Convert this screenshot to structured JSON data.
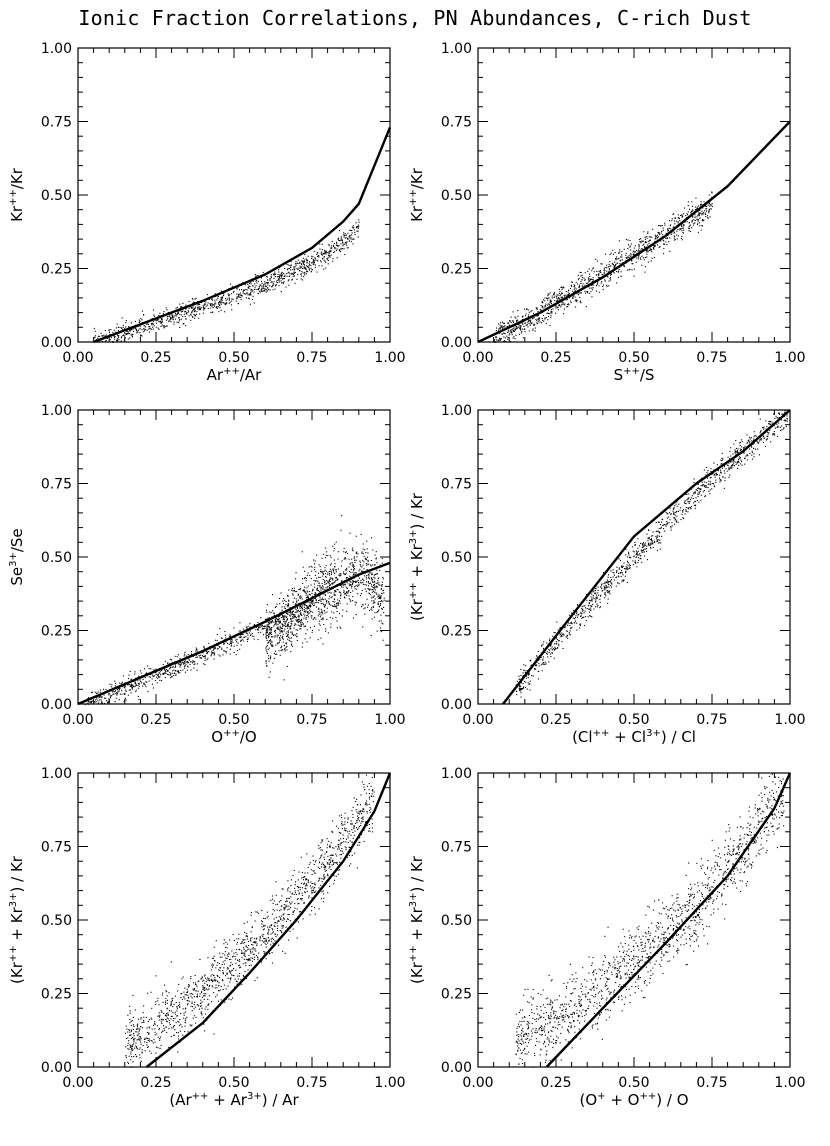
{
  "figure": {
    "title": "Ionic Fraction Correlations, PN Abundances, C-rich Dust"
  },
  "colors": {
    "axis": "#000000",
    "points": "#000000",
    "curve": "#000000",
    "background": "#ffffff"
  },
  "chart_data": [
    {
      "type": "scatter",
      "panel": "top-left",
      "xlabel": {
        "base": "Ar",
        "sup": "++",
        "rest": "/Ar"
      },
      "ylabel": {
        "base": "Kr",
        "sup": "++",
        "rest": "/Kr"
      },
      "xlim": [
        0,
        1
      ],
      "ylim": [
        0,
        1
      ],
      "xticks": [
        "0.00",
        "0.25",
        "0.50",
        "0.75",
        "1.00"
      ],
      "yticks": [
        "0.00",
        "0.25",
        "0.50",
        "0.75",
        "1.00"
      ],
      "fit_curve": {
        "x": [
          0.05,
          0.2,
          0.4,
          0.6,
          0.75,
          0.85,
          0.9,
          1.0
        ],
        "y": [
          0.0,
          0.06,
          0.14,
          0.23,
          0.32,
          0.41,
          0.47,
          0.73
        ]
      },
      "point_clouds": [
        {
          "x_range": [
            0.05,
            0.9
          ],
          "curve": {
            "x": [
              0.05,
              0.2,
              0.4,
              0.6,
              0.75,
              0.85,
              0.9
            ],
            "y": [
              0.0,
              0.05,
              0.12,
              0.2,
              0.27,
              0.34,
              0.4
            ]
          },
          "spread": 0.035,
          "count": 1100
        }
      ]
    },
    {
      "type": "scatter",
      "panel": "top-right",
      "xlabel": {
        "base": "S",
        "sup": "++",
        "rest": "/S"
      },
      "ylabel": {
        "base": "Kr",
        "sup": "++",
        "rest": "/Kr"
      },
      "xlim": [
        0,
        1
      ],
      "ylim": [
        0,
        1
      ],
      "xticks": [
        "0.00",
        "0.25",
        "0.50",
        "0.75",
        "1.00"
      ],
      "yticks": [
        "0.00",
        "0.25",
        "0.50",
        "0.75",
        "1.00"
      ],
      "fit_curve": {
        "x": [
          0.0,
          0.2,
          0.4,
          0.6,
          0.8,
          1.0
        ],
        "y": [
          0.0,
          0.1,
          0.22,
          0.36,
          0.53,
          0.75
        ]
      },
      "point_clouds": [
        {
          "x_range": [
            0.05,
            0.75
          ],
          "curve": {
            "x": [
              0.05,
              0.2,
              0.35,
              0.5,
              0.65,
              0.75
            ],
            "y": [
              0.01,
              0.1,
              0.2,
              0.3,
              0.4,
              0.46
            ]
          },
          "spread": 0.05,
          "count": 1100
        }
      ]
    },
    {
      "type": "scatter",
      "panel": "middle-left",
      "xlabel": {
        "base": "O",
        "sup": "++",
        "rest": "/O"
      },
      "ylabel": {
        "base": "Se",
        "sup": "3+",
        "rest": "/Se"
      },
      "xlim": [
        0,
        1
      ],
      "ylim": [
        0,
        1
      ],
      "xticks": [
        "0.00",
        "0.25",
        "0.50",
        "0.75",
        "1.00"
      ],
      "yticks": [
        "0.00",
        "0.25",
        "0.50",
        "0.75",
        "1.00"
      ],
      "fit_curve": {
        "x": [
          0.0,
          0.2,
          0.4,
          0.6,
          0.75,
          0.9,
          1.0
        ],
        "y": [
          0.0,
          0.09,
          0.18,
          0.28,
          0.36,
          0.44,
          0.48
        ]
      },
      "point_clouds": [
        {
          "x_range": [
            0.02,
            0.75
          ],
          "curve": {
            "x": [
              0.02,
              0.2,
              0.4,
              0.6,
              0.75
            ],
            "y": [
              0.0,
              0.08,
              0.17,
              0.27,
              0.35
            ]
          },
          "spread": 0.035,
          "count": 800
        },
        {
          "x_range": [
            0.6,
            0.98
          ],
          "curve": {
            "x": [
              0.6,
              0.75,
              0.85,
              0.92,
              0.98
            ],
            "y": [
              0.22,
              0.35,
              0.42,
              0.45,
              0.35
            ]
          },
          "spread": 0.12,
          "count": 1200
        }
      ]
    },
    {
      "type": "scatter",
      "panel": "middle-right",
      "xlabel": {
        "base": "(Cl",
        "sup": "++",
        "rest": " + Cl",
        "sup2": "3+",
        "rest2": ") / Cl"
      },
      "ylabel": {
        "base": "(Kr",
        "sup": "++",
        "rest": " + Kr",
        "sup2": "3+",
        "rest2": ") / Kr"
      },
      "xlim": [
        0,
        1
      ],
      "ylim": [
        0,
        1
      ],
      "xticks": [
        "0.00",
        "0.25",
        "0.50",
        "0.75",
        "1.00"
      ],
      "yticks": [
        "0.00",
        "0.25",
        "0.50",
        "0.75",
        "1.00"
      ],
      "fit_curve": {
        "x": [
          0.08,
          0.3,
          0.5,
          0.7,
          0.85,
          1.0
        ],
        "y": [
          0.0,
          0.3,
          0.57,
          0.75,
          0.86,
          1.0
        ]
      },
      "point_clouds": [
        {
          "x_range": [
            0.12,
            0.99
          ],
          "curve": {
            "x": [
              0.12,
              0.3,
              0.5,
              0.7,
              0.85,
              0.99
            ],
            "y": [
              0.05,
              0.28,
              0.5,
              0.72,
              0.86,
              0.99
            ]
          },
          "spread": 0.045,
          "count": 1100
        }
      ]
    },
    {
      "type": "scatter",
      "panel": "bottom-left",
      "xlabel": {
        "base": "(Ar",
        "sup": "++",
        "rest": " + Ar",
        "sup2": "3+",
        "rest2": ") / Ar"
      },
      "ylabel": {
        "base": "(Kr",
        "sup": "++",
        "rest": " + Kr",
        "sup2": "3+",
        "rest2": ") / Kr"
      },
      "xlim": [
        0,
        1
      ],
      "ylim": [
        0,
        1
      ],
      "xticks": [
        "0.00",
        "0.25",
        "0.50",
        "0.75",
        "1.00"
      ],
      "yticks": [
        "0.00",
        "0.25",
        "0.50",
        "0.75",
        "1.00"
      ],
      "fit_curve": {
        "x": [
          0.22,
          0.4,
          0.55,
          0.7,
          0.85,
          0.95,
          1.0
        ],
        "y": [
          0.0,
          0.15,
          0.32,
          0.5,
          0.7,
          0.87,
          1.0
        ]
      },
      "point_clouds": [
        {
          "x_range": [
            0.15,
            0.95
          ],
          "curve": {
            "x": [
              0.15,
              0.4,
              0.6,
              0.8,
              0.95
            ],
            "y": [
              0.08,
              0.25,
              0.45,
              0.7,
              0.9
            ]
          },
          "spread": 0.1,
          "count": 1400
        }
      ]
    },
    {
      "type": "scatter",
      "panel": "bottom-right",
      "xlabel": {
        "base": "(O",
        "sup": "+",
        "rest": " + O",
        "sup2": "++",
        "rest2": ") / O"
      },
      "ylabel": {
        "base": "(Kr",
        "sup": "++",
        "rest": " + Kr",
        "sup2": "3+",
        "rest2": ") / Kr"
      },
      "xlim": [
        0,
        1
      ],
      "ylim": [
        0,
        1
      ],
      "xticks": [
        "0.00",
        "0.25",
        "0.50",
        "0.75",
        "1.00"
      ],
      "yticks": [
        "0.00",
        "0.25",
        "0.50",
        "0.75",
        "1.00"
      ],
      "fit_curve": {
        "x": [
          0.22,
          0.4,
          0.6,
          0.8,
          0.95,
          1.0
        ],
        "y": [
          0.0,
          0.2,
          0.42,
          0.65,
          0.88,
          1.0
        ]
      },
      "point_clouds": [
        {
          "x_range": [
            0.12,
            0.98
          ],
          "curve": {
            "x": [
              0.12,
              0.3,
              0.5,
              0.7,
              0.85,
              0.98
            ],
            "y": [
              0.08,
              0.2,
              0.35,
              0.55,
              0.75,
              0.95
            ]
          },
          "spread": 0.12,
          "count": 1400
        }
      ]
    }
  ]
}
